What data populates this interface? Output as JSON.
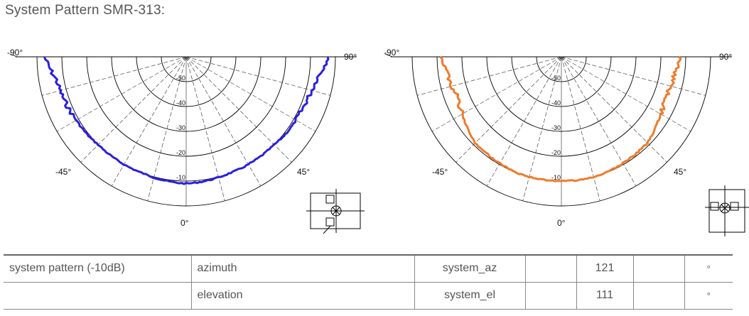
{
  "page": {
    "title": "System Pattern SMR-313:"
  },
  "plots": [
    {
      "id": "azimuth",
      "color": "#2a1fe0",
      "labels": {
        "left": "-90°",
        "right": "90°",
        "mid_left": "-45°",
        "mid_right": "45°",
        "bottom": "0°"
      },
      "ring_labels": [
        "-50",
        "-40",
        "-30",
        "-20",
        "-10"
      ],
      "pattern_db_at": {
        "angles": [
          -90,
          -80,
          -70,
          -60,
          -50,
          -45,
          -40,
          -30,
          -20,
          -10,
          0,
          10,
          20,
          30,
          40,
          45,
          50,
          60,
          70,
          80,
          90
        ],
        "db": [
          -3,
          -7,
          -8,
          -9,
          -9.5,
          -10,
          -10,
          -10,
          -10,
          -9.5,
          -9,
          -9.5,
          -10,
          -10,
          -10,
          -10,
          -9.5,
          -9,
          -8.5,
          -7,
          -3
        ]
      }
    },
    {
      "id": "elevation",
      "color": "#ee7b2e",
      "labels": {
        "left": "-90°",
        "right": "90°",
        "mid_left": "-45°",
        "mid_right": "45°",
        "bottom": "0°"
      },
      "ring_labels": [
        "-50",
        "-40",
        "-30",
        "-20",
        "-10"
      ],
      "pattern_db_at": {
        "angles": [
          -90,
          -80,
          -70,
          -60,
          -50,
          -45,
          -40,
          -30,
          -20,
          -10,
          0,
          10,
          20,
          30,
          40,
          45,
          50,
          60,
          70,
          80,
          90
        ],
        "db": [
          -12,
          -14,
          -15,
          -14,
          -12,
          -11,
          -11,
          -10.5,
          -10,
          -10,
          -10,
          -10,
          -10,
          -10.5,
          -11,
          -11,
          -12,
          -14,
          -15,
          -14,
          -12
        ]
      }
    }
  ],
  "table": {
    "rows": [
      {
        "label": "system pattern (-10dB)",
        "name": "azimuth",
        "variable": "system_az",
        "min": "",
        "value": "121",
        "max": "",
        "unit": "°"
      },
      {
        "label": "",
        "name": "elevation",
        "variable": "system_el",
        "min": "",
        "value": "111",
        "max": "",
        "unit": "°"
      }
    ]
  }
}
